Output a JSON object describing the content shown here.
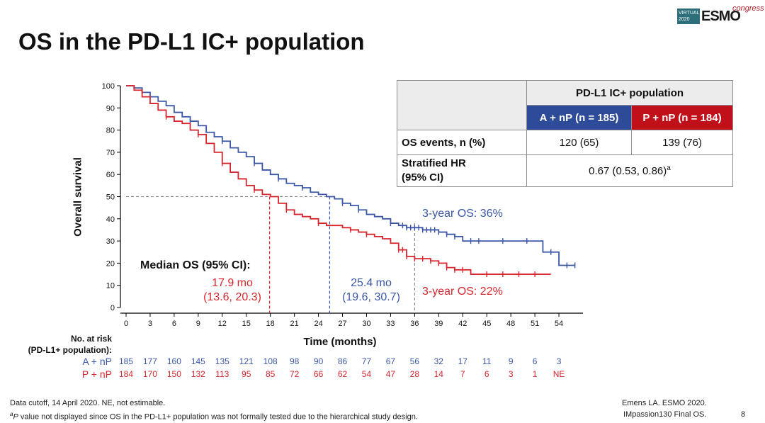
{
  "header": {
    "title": "OS in the PD-L1 IC+ population",
    "logo_line1": "VIRTUAL",
    "logo_line2": "2020",
    "logo_brand": "ESMO",
    "logo_congress": "congress"
  },
  "summary_table": {
    "group_header": "PD-L1 IC+ population",
    "arm_a": "A + nP (n = 185)",
    "arm_p": "P + nP (n = 184)",
    "row1_label": "OS events, n (%)",
    "row1_a": "120 (65)",
    "row1_p": "139 (76)",
    "row2_label_line1": "Stratified HR",
    "row2_label_line2": "(95% CI)",
    "row2_value": "0.67 (0.53, 0.86)",
    "row2_sup": "a"
  },
  "annotations": {
    "median_label": "Median OS (95% CI):",
    "red_median_line1": "17.9 mo",
    "red_median_line2": "(13.6, 20.3)",
    "blue_median_line1": "25.4 mo",
    "blue_median_line2": "(19.6, 30.7)",
    "blue_3yr": "3-year OS: 36%",
    "red_3yr": "3-year OS: 22%"
  },
  "risk_table": {
    "label_line1": "No. at risk",
    "label_line2": "(PD-L1+ population):",
    "arm_a_label": "A + nP",
    "arm_p_label": "P + nP",
    "arm_a": [
      "185",
      "177",
      "160",
      "145",
      "135",
      "121",
      "108",
      "98",
      "90",
      "86",
      "77",
      "67",
      "56",
      "32",
      "17",
      "11",
      "9",
      "6",
      "3"
    ],
    "arm_p": [
      "184",
      "170",
      "150",
      "132",
      "113",
      "95",
      "85",
      "72",
      "66",
      "62",
      "54",
      "47",
      "28",
      "14",
      "7",
      "6",
      "3",
      "1",
      "NE"
    ]
  },
  "footer": {
    "line1": "Data cutoff, 14 April 2020. NE, not estimable.",
    "line2_sup": "a",
    "line2_italic": "P",
    "line2_rest": " value not displayed since OS in the PD-L1+ population was not formally tested due to the hierarchical study design.",
    "ref_line1": "Emens LA. ESMO 2020.",
    "ref_line2": "IMpassion130 Final OS.",
    "page": "8"
  },
  "colors": {
    "blue": "#3b57a6",
    "red": "#d8262e",
    "gray": "#8a8a8a"
  },
  "chart_data": {
    "type": "line",
    "xlabel": "Time (months)",
    "ylabel": "Overall survival",
    "xlim": [
      0,
      57
    ],
    "ylim": [
      0,
      100
    ],
    "xticks": [
      0,
      3,
      6,
      9,
      12,
      15,
      18,
      21,
      24,
      27,
      30,
      33,
      36,
      39,
      42,
      45,
      48,
      51,
      54
    ],
    "yticks": [
      0,
      10,
      20,
      30,
      40,
      50,
      60,
      70,
      80,
      90,
      100
    ],
    "reference_lines": {
      "y": 50,
      "x_red_median": 17.9,
      "x_blue_median": 25.4,
      "x_3yr": 36
    },
    "series": [
      {
        "name": "A + nP",
        "color": "#3b57a6",
        "x": [
          0,
          1,
          2,
          3,
          4,
          5,
          6,
          7,
          8,
          9,
          10,
          11,
          12,
          13,
          14,
          15,
          16,
          17,
          18,
          19,
          20,
          21,
          22,
          23,
          24,
          25,
          26,
          27,
          28,
          29,
          30,
          31,
          32,
          33,
          34,
          35,
          36,
          37,
          38,
          39,
          40,
          41,
          42,
          43,
          44,
          45,
          46,
          47,
          48,
          49,
          50,
          51,
          52,
          53,
          54,
          55,
          56
        ],
        "y": [
          100,
          99,
          97,
          95,
          93,
          91,
          88,
          86,
          84,
          82,
          79,
          77,
          75,
          72,
          70,
          68,
          65,
          62,
          60,
          58,
          56,
          55,
          54,
          52,
          51,
          50,
          49,
          47,
          46,
          44,
          42,
          41,
          40,
          38,
          37,
          36,
          36,
          35,
          35,
          34,
          33,
          32,
          30,
          30,
          30,
          30,
          30,
          30,
          30,
          30,
          30,
          30,
          25,
          25,
          19,
          19,
          19
        ],
        "censor_x": [
          8,
          12,
          16,
          19,
          22,
          27,
          29,
          33,
          34.5,
          35,
          35.5,
          36,
          36.5,
          37,
          37.5,
          38,
          38.5,
          39,
          40,
          41,
          43,
          44,
          47,
          50,
          53,
          55,
          56
        ]
      },
      {
        "name": "P + nP",
        "color": "#d8262e",
        "x": [
          0,
          1,
          2,
          3,
          4,
          5,
          6,
          7,
          8,
          9,
          10,
          11,
          12,
          13,
          14,
          15,
          16,
          17,
          18,
          19,
          20,
          21,
          22,
          23,
          24,
          25,
          26,
          27,
          28,
          29,
          30,
          31,
          32,
          33,
          34,
          35,
          36,
          37,
          38,
          39,
          40,
          41,
          42,
          43,
          44,
          45,
          46,
          47,
          48,
          49,
          50,
          51,
          52,
          53
        ],
        "y": [
          100,
          98,
          95,
          92,
          89,
          86,
          84,
          83,
          80,
          78,
          74,
          70,
          65,
          61,
          58,
          55,
          53,
          51,
          50,
          47,
          44,
          42,
          41,
          40,
          38,
          37,
          37,
          36,
          35,
          34,
          33,
          32,
          31,
          29,
          26,
          23,
          22,
          22,
          21,
          20,
          18,
          17,
          17,
          15,
          15,
          15,
          15,
          15,
          15,
          15,
          15,
          15,
          15,
          15
        ],
        "censor_x": [
          5,
          9,
          12,
          16,
          20,
          24,
          28,
          30,
          34,
          34.5,
          35,
          36,
          37,
          38,
          39,
          40,
          41,
          42,
          45,
          47,
          49,
          51
        ]
      }
    ]
  }
}
